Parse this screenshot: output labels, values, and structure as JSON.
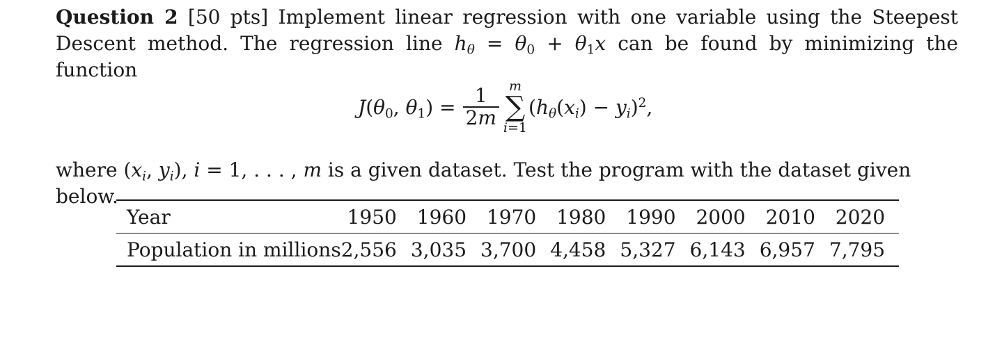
{
  "question": {
    "label": "Question 2",
    "points": "[50 pts]",
    "prompt_part1": "Implement linear regression with one variable using the Steepest Descent method. The regression line",
    "hypothesis": "hθ = θ0 + θ1x",
    "prompt_part2": "can be found by minimizing the function",
    "equation": "J(θ0, θ1) = 1/(2m) Σ_{i=1}^{m} (hθ(xi) − yi)^2,",
    "where_prefix": "where",
    "dataset_notation": "(xi, yi), i = 1, . . . , m",
    "where_suffix": "is a given dataset. Test the program with the dataset given below."
  },
  "table": {
    "row_headers": [
      "Year",
      "Population in millions"
    ],
    "years": [
      "1950",
      "1960",
      "1970",
      "1980",
      "1990",
      "2000",
      "2010",
      "2020"
    ],
    "population": [
      "2,556",
      "3,035",
      "3,700",
      "4,458",
      "5,327",
      "6,143",
      "6,957",
      "7,795"
    ]
  }
}
